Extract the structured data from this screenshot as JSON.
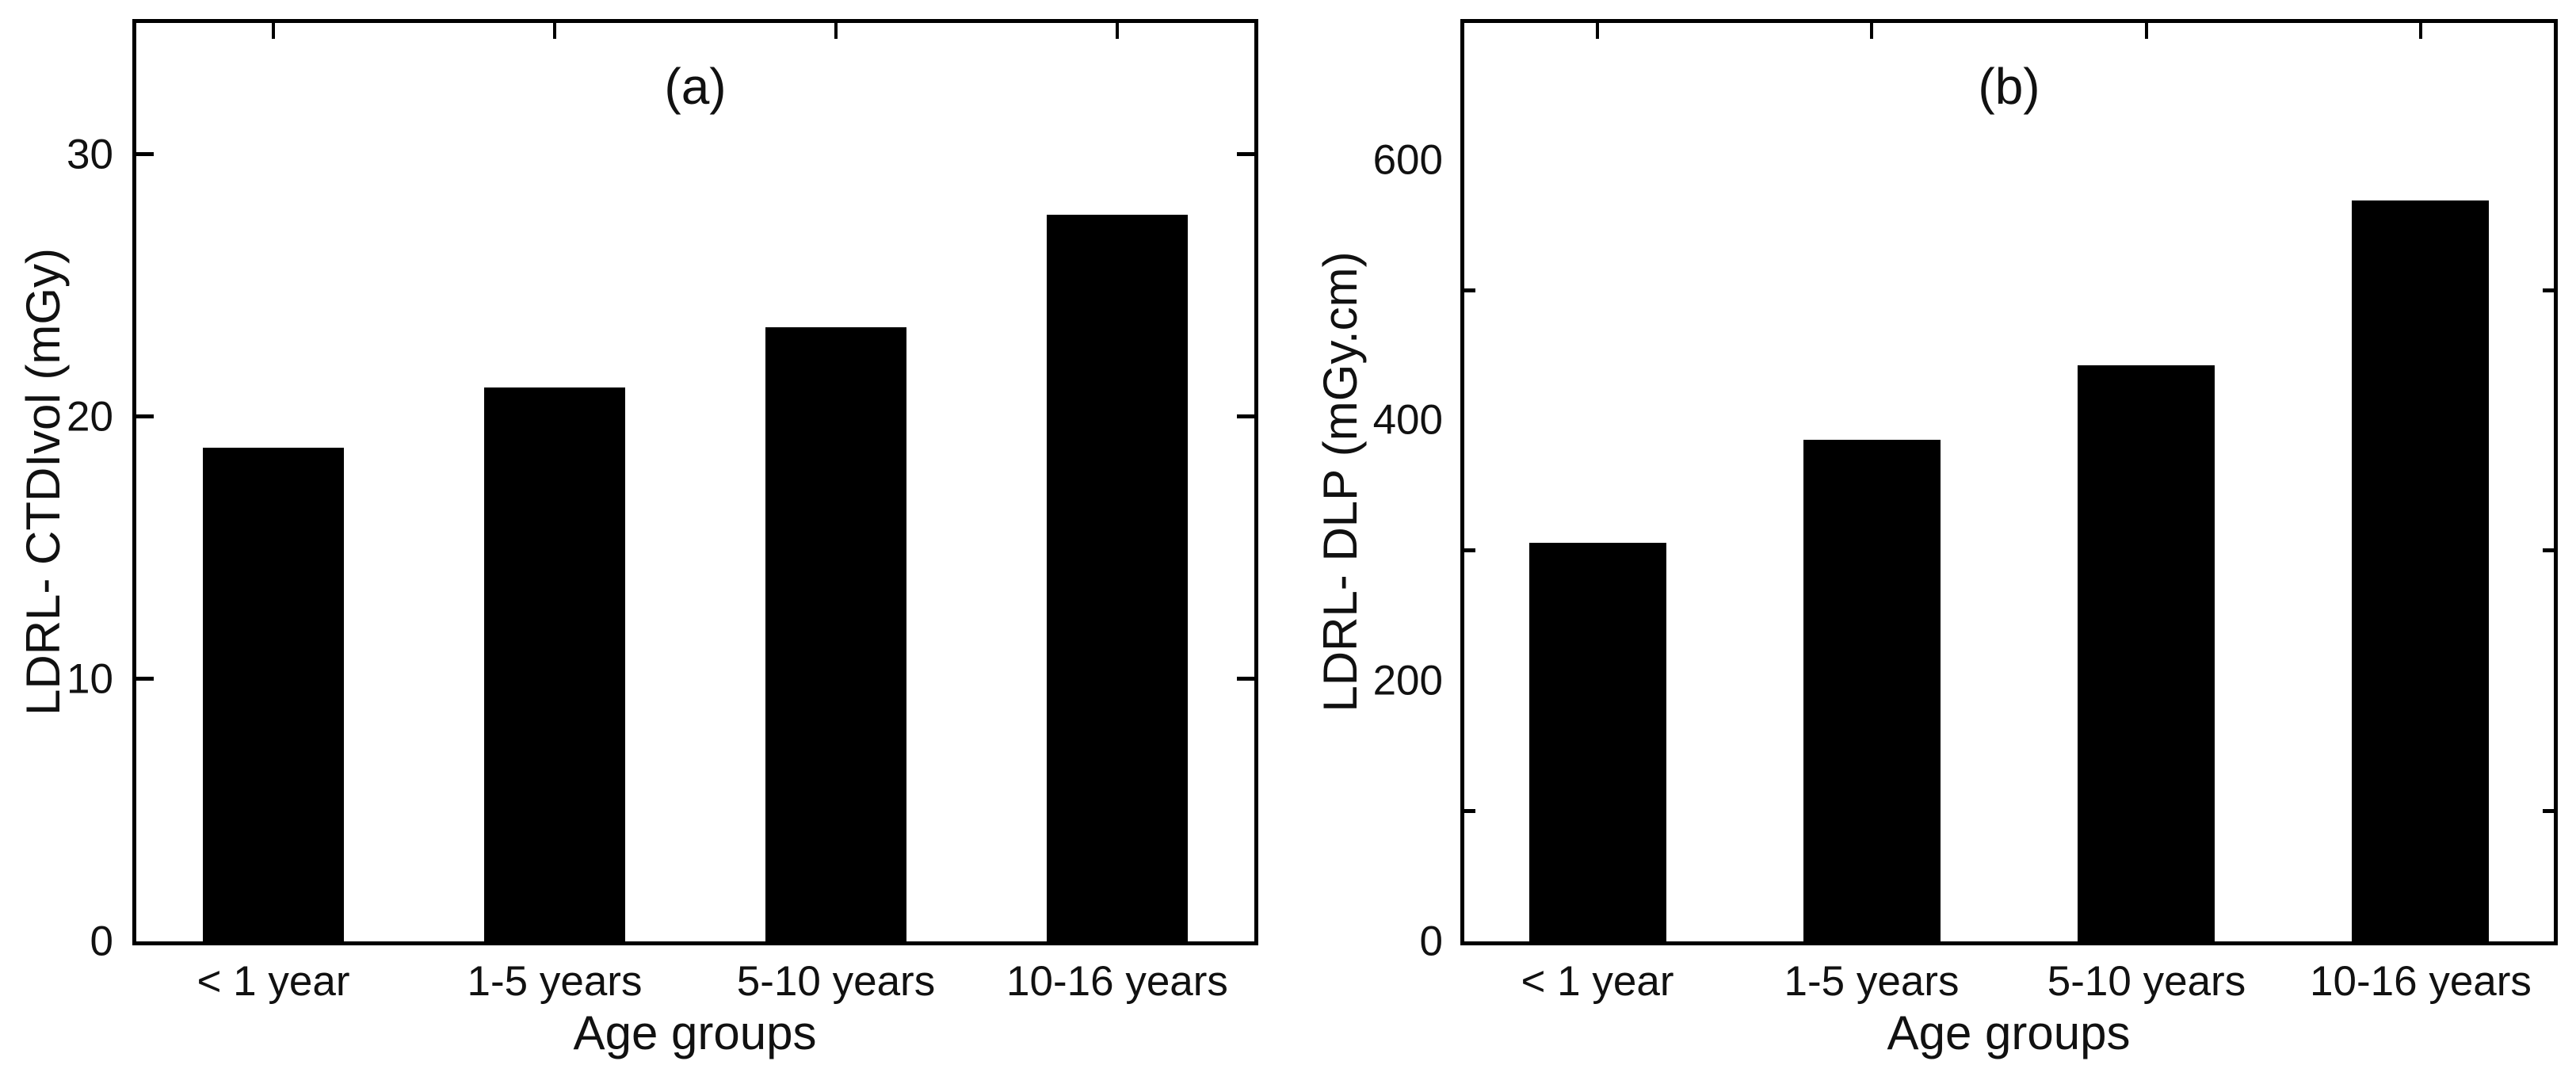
{
  "figure": {
    "background": "#ffffff",
    "foreground": "#000000",
    "panel_count": 2
  },
  "chart_data": [
    {
      "type": "bar",
      "title": "(a)",
      "categories": [
        "< 1 year",
        "1-5 years",
        "5-10 years",
        "10-16 years"
      ],
      "values": [
        18.8,
        21.1,
        23.4,
        27.7
      ],
      "xlabel": "Age groups",
      "ylabel": "LDRL- CTDIvol (mGy)",
      "ylim": [
        0,
        35
      ],
      "ytick_labels": [
        0,
        10,
        20,
        30
      ],
      "ytick_dash_positions": [
        10,
        20,
        30
      ],
      "bar_color": "#000000",
      "grid": false,
      "legend": false
    },
    {
      "type": "bar",
      "title": "(b)",
      "categories": [
        "< 1 year",
        "1-5 years",
        "5-10 years",
        "10-16 years"
      ],
      "values": [
        306,
        385,
        442,
        569
      ],
      "xlabel": "Age groups",
      "ylabel": "LDRL- DLP (mGy.cm)",
      "ylim": [
        0,
        705
      ],
      "ytick_labels": [
        0,
        200,
        400,
        600
      ],
      "ytick_dash_positions": [
        100,
        300,
        500
      ],
      "bar_color": "#000000",
      "grid": false,
      "legend": false
    }
  ]
}
